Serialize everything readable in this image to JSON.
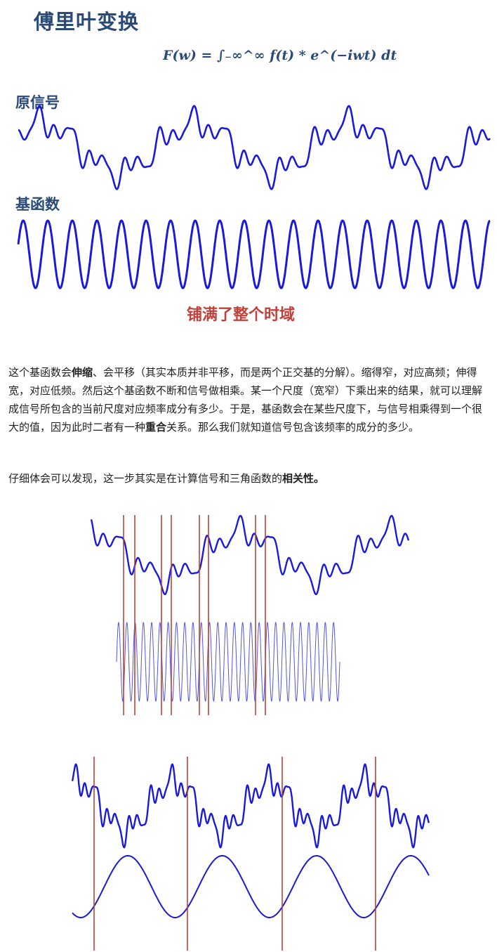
{
  "title": "傅里叶变换",
  "formula": "F(w) = ∫₋∞^∞ f(t) * e^(−iwt) dt",
  "labels": {
    "original_signal": "原信号",
    "basis_function": "基函数",
    "fills_time_domain": "铺满了整个时域"
  },
  "paragraph1": {
    "t1": "这个基函数会",
    "b1": "伸缩",
    "t2": "、会平移（其实本质并非平移，而是两个正交基的分解）。缩得窄，对应高频；伸得宽，对应低频。然后这个基函数不断和信号做相乘。某一个尺度（宽窄）下乘出来的结果，就可以理解成信号所包含的当前尺度对应频率成分有多少。于是，基函数会在某些尺度下，与信号相乘得到一个很大的值，因为此时二者有一种",
    "b2": "重合",
    "t3": "关系。那么我们就知道信号包含该频率的成分的多少。"
  },
  "paragraph2": {
    "t1": "仔细体会可以发现，这一步其实是在计算信号和三角函数的",
    "b1": "相关性。"
  },
  "colors": {
    "title": "#2b4a78",
    "wave": "#1a1adc",
    "marker": "#b5453b",
    "note": "#c0403a"
  }
}
